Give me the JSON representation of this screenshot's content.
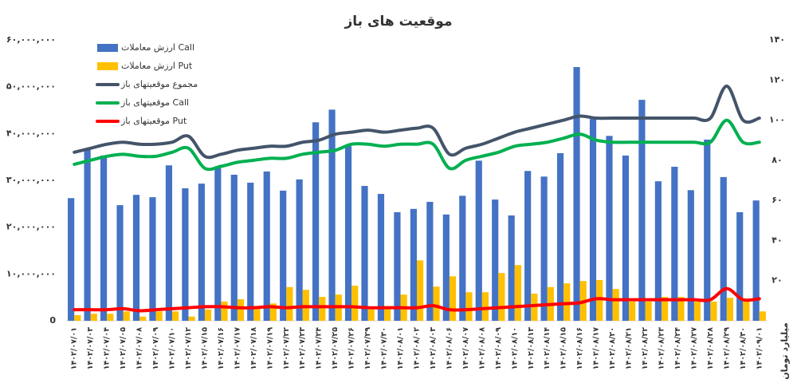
{
  "chart_data": {
    "type": "bar-line",
    "title": "موقعیت های باز",
    "y2_label": "میلیارد تومان",
    "categories": [
      "۱۴۰۲/۰۷/۰۱",
      "۱۴۰۲/۰۷/۰۳",
      "۱۴۰۲/۰۷/۰۴",
      "۱۴۰۲/۰۷/۰۵",
      "۱۴۰۲/۰۷/۰۸",
      "۱۴۰۲/۰۷/۰۹",
      "۱۴۰۲/۰۷/۱۰",
      "۱۴۰۲/۰۷/۱۲",
      "۱۴۰۲/۰۷/۱۵",
      "۱۴۰۲/۰۷/۱۶",
      "۱۴۰۲/۰۷/۱۷",
      "۱۴۰۲/۰۷/۱۸",
      "۱۴۰۲/۰۷/۱۹",
      "۱۴۰۲/۰۷/۲۲",
      "۱۴۰۲/۰۷/۲۳",
      "۱۴۰۲/۰۷/۲۴",
      "۱۴۰۲/۰۷/۲۵",
      "۱۴۰۲/۰۷/۲۶",
      "۱۴۰۲/۰۷/۲۹",
      "۱۴۰۲/۰۷/۳۰",
      "۱۴۰۲/۰۸/۰۱",
      "۱۴۰۲/۰۸/۰۲",
      "۱۴۰۲/۰۸/۰۳",
      "۱۴۰۲/۰۸/۰۶",
      "۱۴۰۲/۰۸/۰۷",
      "۱۴۰۲/۰۸/۰۸",
      "۱۴۰۲/۰۸/۰۹",
      "۱۴۰۲/۰۸/۱۰",
      "۱۴۰۲/۰۸/۱۳",
      "۱۴۰۲/۰۸/۱۴",
      "۱۴۰۲/۰۸/۱۵",
      "۱۴۰۲/۰۸/۱۶",
      "۱۴۰۲/۰۸/۱۷",
      "۱۴۰۲/۰۸/۲۰",
      "۱۴۰۲/۰۸/۲۱",
      "۱۴۰۲/۰۸/۲۲",
      "۱۴۰۲/۰۸/۲۳",
      "۱۴۰۲/۰۸/۲۴",
      "۱۴۰۲/۰۸/۲۷",
      "۱۴۰۲/۰۸/۲۸",
      "۱۴۰۲/۰۸/۲۹",
      "۱۴۰۲/۰۸/۳۰",
      "۱۴۰۲/۰۹/۰۱"
    ],
    "series": [
      {
        "name": "ارزش معاملات Call",
        "kind": "bar",
        "color": "#4472c4",
        "values": [
          26200000,
          36500000,
          35300000,
          24700000,
          26900000,
          26400000,
          33200000,
          28300000,
          29300000,
          33000000,
          31200000,
          29500000,
          31900000,
          27800000,
          30200000,
          42400000,
          45100000,
          37300000,
          28800000,
          27100000,
          23200000,
          23900000,
          25400000,
          22700000,
          26700000,
          34200000,
          25900000,
          22500000,
          32000000,
          30800000,
          35800000,
          54200000,
          43100000,
          39500000,
          35300000,
          47200000,
          29800000,
          32900000,
          27900000,
          38700000,
          30700000,
          23200000,
          25700000
        ]
      },
      {
        "name": "ارزش معاملات Put",
        "kind": "bar",
        "color": "#ffc000",
        "values": [
          1200000,
          1500000,
          1500000,
          2000000,
          900000,
          2000000,
          2000000,
          900000,
          2400000,
          4100000,
          4600000,
          2900000,
          3700000,
          7200000,
          6600000,
          5100000,
          5600000,
          7500000,
          2400000,
          3100000,
          5600000,
          12900000,
          7300000,
          9500000,
          6100000,
          6100000,
          10200000,
          11900000,
          5800000,
          7200000,
          8000000,
          8500000,
          8700000,
          6800000,
          4100000,
          4100000,
          5100000,
          5100000,
          4100000,
          4100000,
          4900000,
          4100000,
          2000000
        ]
      },
      {
        "name": "مجموع موقعیتهای باز",
        "kind": "line",
        "axis": "y2",
        "color": "#44546a",
        "values": [
          84,
          86,
          88,
          89,
          88,
          88,
          89,
          92,
          82,
          83,
          85,
          86,
          87,
          87,
          89,
          90,
          93,
          94,
          95,
          94,
          95,
          96,
          96,
          83,
          86,
          88,
          91,
          94,
          96,
          98,
          100,
          102,
          101,
          101,
          101,
          101,
          101,
          101,
          101,
          101,
          117,
          100,
          101
        ]
      },
      {
        "name": "موقعیتهای باز Call",
        "kind": "line",
        "axis": "y2",
        "color": "#00b050",
        "values": [
          78,
          80,
          82,
          83,
          82,
          82,
          84,
          86,
          76,
          77,
          79,
          80,
          81,
          81,
          83,
          84,
          85,
          88,
          88,
          87,
          88,
          88,
          88,
          76,
          80,
          82,
          84,
          87,
          88,
          89,
          91,
          93,
          90,
          89,
          89,
          89,
          89,
          89,
          89,
          89,
          100,
          89,
          89
        ]
      },
      {
        "name": "موقعیتهای باز Put",
        "kind": "line",
        "axis": "y2",
        "color": "#ff0000",
        "values": [
          5.5,
          5.5,
          5.5,
          6,
          5,
          5.5,
          6,
          6.5,
          7,
          7,
          6.5,
          6.5,
          7,
          6.5,
          7,
          7,
          7,
          7,
          6.5,
          6.5,
          6.5,
          6.5,
          7.5,
          5.5,
          5.5,
          6,
          6.5,
          7,
          7.5,
          8,
          8.5,
          9,
          11,
          10.5,
          10.5,
          10.5,
          10.5,
          10.5,
          10.5,
          10.5,
          16,
          10.5,
          11
        ]
      }
    ],
    "ylim": [
      0,
      60000000
    ],
    "yticks": [
      {
        "value": 0,
        "label": "0"
      },
      {
        "value": 10000000,
        "label": "۱۰,۰۰۰,۰۰۰"
      },
      {
        "value": 20000000,
        "label": "۲۰,۰۰۰,۰۰۰"
      },
      {
        "value": 30000000,
        "label": "۳۰,۰۰۰,۰۰۰"
      },
      {
        "value": 40000000,
        "label": "۴۰,۰۰۰,۰۰۰"
      },
      {
        "value": 50000000,
        "label": "۵۰,۰۰۰,۰۰۰"
      },
      {
        "value": 60000000,
        "label": "۶۰,۰۰۰,۰۰۰"
      }
    ],
    "y2lim": [
      0,
      140
    ],
    "y2ticks": [
      {
        "value": 20,
        "label": "۲۰"
      },
      {
        "value": 40,
        "label": "۴۰"
      },
      {
        "value": 60,
        "label": "۶۰"
      },
      {
        "value": 80,
        "label": "۸۰"
      },
      {
        "value": 100,
        "label": "۱۰۰"
      },
      {
        "value": 120,
        "label": "۱۲۰"
      },
      {
        "value": 140,
        "label": "۱۴۰"
      }
    ],
    "legend": "top-left"
  }
}
